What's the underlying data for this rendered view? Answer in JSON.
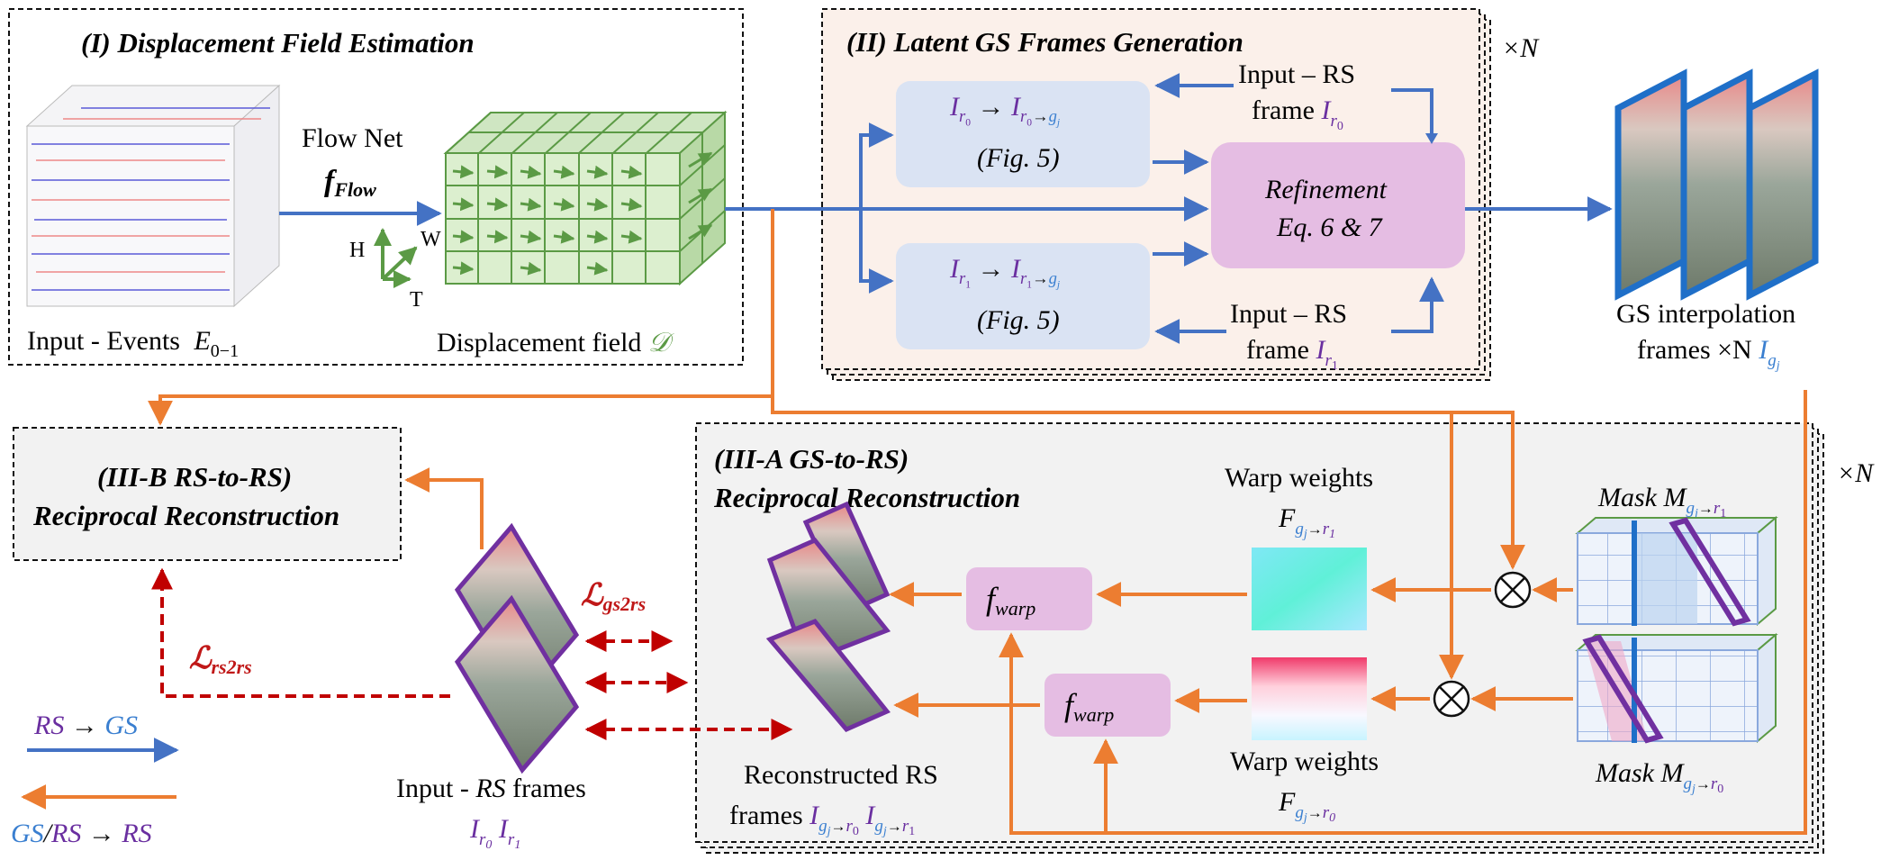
{
  "stage1": {
    "title": "(I) Displacement Field Estimation",
    "input_label": "Input - Events",
    "input_symbol": "E",
    "input_sub": "0−1",
    "net_label": "Flow Net",
    "net_symbol": "f",
    "net_sub": "Flow",
    "axis_h": "H",
    "axis_w": "W",
    "axis_t": "T",
    "field_label": "Displacement field",
    "field_symbol": "𝒟"
  },
  "stage2": {
    "title": "(II) Latent GS Frames Generation",
    "repeat": "×N",
    "box_top_fig": "(Fig. 5)",
    "box_bottom_fig": "(Fig. 5)",
    "refine_line1": "Refinement",
    "refine_line2": "Eq. 6 & 7",
    "rs_top_line1": "Input – RS",
    "rs_top_line2": "frame",
    "rs_bottom_line1": "Input – RS",
    "rs_bottom_line2": "frame",
    "gs_line1": "GS interpolation",
    "gs_line2": "frames ×N"
  },
  "stage3a": {
    "title_line1": "(III-A GS-to-RS)",
    "title_line2": "Reciprocal Reconstruction",
    "repeat": "×N",
    "warp_top_label": "Warp weights",
    "warp_bottom_label": "Warp weights",
    "fwarp": "f",
    "fwarp_sub": "warp",
    "mask_top": "Mask M",
    "mask_bottom": "Mask M",
    "recon_line1": "Reconstructed RS",
    "recon_line2": "frames"
  },
  "stage3b": {
    "title_line1": "(III-B RS-to-RS)",
    "title_line2": "Reciprocal Reconstruction"
  },
  "losses": {
    "gs2rs": "gs2rs",
    "rs2rs": "rs2rs",
    "symbol": "ℒ"
  },
  "input_rs": {
    "line1_a": "Input -",
    "line1_b": "RS",
    "line1_c": "frames"
  },
  "legend": {
    "blue_from": "RS",
    "blue_to": "GS",
    "orange_from_a": "GS",
    "orange_from_b": "RS",
    "orange_to": "RS"
  },
  "colors": {
    "blue_arrow": "#4472c4",
    "orange_arrow": "#ec7d31",
    "red_dashed": "#c00000",
    "purple_text": "#6a2fa0",
    "blue_text": "#3a7fd0",
    "box_blue": "#dae3f3",
    "box_pink": "#e5bde3",
    "stage2_bg": "#fbf0ea",
    "stage3_bg": "#f2f2f2"
  }
}
